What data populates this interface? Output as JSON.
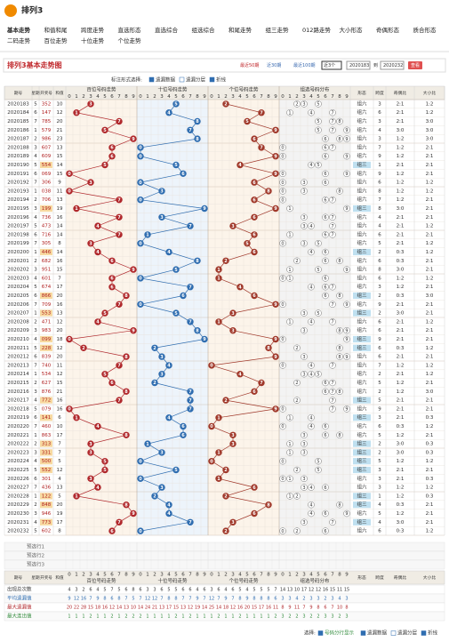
{
  "header": {
    "logo": "排列3",
    "nav": [
      "基本走势",
      "和值和尾",
      "跨度走势",
      "直选形态",
      "直选综合",
      "组选综合",
      "和尾走势",
      "组三走势",
      "012路走势",
      "大小形态",
      "奇偶形态",
      "质合形态",
      "二码走势",
      "百位走势",
      "十位走势",
      "个位走势"
    ]
  },
  "title": "排列3基本走势图",
  "range_controls": {
    "recent": [
      "最近50期",
      "近30期",
      "最近100期"
    ],
    "select": "近3个",
    "from": "2020183",
    "to_label": "到",
    "to": "2020232",
    "button": "查看"
  },
  "options": {
    "label": "标注形式选择:",
    "items": [
      "遗漏数据",
      "遗漏分层",
      "折线"
    ]
  },
  "table": {
    "headers": {
      "period": "期号",
      "weekday": "星期",
      "number": "开奖号",
      "sum": "和值",
      "groups": [
        "百位号码走势",
        "十位号码走势",
        "个位号码走势",
        "组选号码分布"
      ],
      "stats": [
        "形态",
        "跨度",
        "奇偶比",
        "大小比"
      ]
    },
    "digits": [
      0,
      1,
      2,
      3,
      4,
      5,
      6,
      7,
      8,
      9
    ],
    "rows": [
      [
        "2020183",
        5,
        "352",
        10,
        [
          3,
          5,
          2
        ],
        "组六",
        3,
        "2:1",
        "1:2"
      ],
      [
        "2020184",
        6,
        "147",
        12,
        [
          1,
          4,
          7
        ],
        "组六",
        6,
        "2:1",
        "1:2"
      ],
      [
        "2020185",
        7,
        "785",
        20,
        [
          7,
          8,
          5
        ],
        "组六",
        3,
        "2:1",
        "3:0"
      ],
      [
        "2020186",
        1,
        "579",
        21,
        [
          5,
          7,
          9
        ],
        "组六",
        4,
        "3:0",
        "3:0"
      ],
      [
        "2020187",
        2,
        "986",
        23,
        [
          9,
          8,
          6
        ],
        "组六",
        3,
        "1:2",
        "3:0"
      ],
      [
        "2020188",
        3,
        "607",
        13,
        [
          6,
          0,
          7
        ],
        "组六",
        7,
        "1:2",
        "2:1"
      ],
      [
        "2020189",
        4,
        "609",
        15,
        [
          6,
          0,
          9
        ],
        "组六",
        9,
        "1:2",
        "2:1"
      ],
      [
        "2020190",
        5,
        "554",
        14,
        [
          5,
          5,
          4
        ],
        "组三",
        1,
        "2:1",
        "2:1"
      ],
      [
        "2020191",
        6,
        "069",
        15,
        [
          0,
          6,
          9
        ],
        "组六",
        9,
        "1:2",
        "2:1"
      ],
      [
        "2020192",
        7,
        "306",
        9,
        [
          3,
          0,
          6
        ],
        "组六",
        6,
        "1:2",
        "1:2"
      ],
      [
        "2020193",
        1,
        "038",
        11,
        [
          0,
          3,
          8
        ],
        "组六",
        8,
        "1:2",
        "1:2"
      ],
      [
        "2020194",
        2,
        "706",
        13,
        [
          7,
          0,
          6
        ],
        "组六",
        7,
        "1:2",
        "2:1"
      ],
      [
        "2020195",
        3,
        "199",
        19,
        [
          1,
          9,
          9
        ],
        "组三",
        8,
        "3:0",
        "2:1"
      ],
      [
        "2020196",
        4,
        "736",
        16,
        [
          7,
          3,
          6
        ],
        "组六",
        4,
        "2:1",
        "2:1"
      ],
      [
        "2020197",
        5,
        "473",
        14,
        [
          4,
          7,
          3
        ],
        "组六",
        4,
        "2:1",
        "1:2"
      ],
      [
        "2020198",
        6,
        "716",
        14,
        [
          7,
          1,
          6
        ],
        "组六",
        6,
        "2:1",
        "2:1"
      ],
      [
        "2020199",
        7,
        "305",
        8,
        [
          3,
          0,
          5
        ],
        "组六",
        5,
        "2:1",
        "1:2"
      ],
      [
        "2020200",
        1,
        "446",
        14,
        [
          4,
          4,
          6
        ],
        "组三",
        2,
        "0:3",
        "1:2"
      ],
      [
        "2020201",
        2,
        "682",
        16,
        [
          6,
          8,
          2
        ],
        "组六",
        6,
        "0:3",
        "2:1"
      ],
      [
        "2020202",
        3,
        "951",
        15,
        [
          9,
          5,
          1
        ],
        "组六",
        8,
        "3:0",
        "2:1"
      ],
      [
        "2020203",
        4,
        "601",
        7,
        [
          6,
          0,
          1
        ],
        "组六",
        6,
        "1:2",
        "1:2"
      ],
      [
        "2020204",
        5,
        "674",
        17,
        [
          6,
          7,
          4
        ],
        "组六",
        3,
        "1:2",
        "2:1"
      ],
      [
        "2020205",
        6,
        "866",
        20,
        [
          8,
          6,
          6
        ],
        "组三",
        2,
        "0:3",
        "3:0"
      ],
      [
        "2020206",
        7,
        "709",
        16,
        [
          7,
          0,
          9
        ],
        "组六",
        9,
        "2:1",
        "2:1"
      ],
      [
        "2020207",
        1,
        "553",
        13,
        [
          5,
          5,
          3
        ],
        "组三",
        2,
        "3:0",
        "2:1"
      ],
      [
        "2020208",
        2,
        "471",
        12,
        [
          4,
          7,
          1
        ],
        "组六",
        6,
        "2:1",
        "1:2"
      ],
      [
        "2020209",
        3,
        "983",
        20,
        [
          9,
          8,
          3
        ],
        "组六",
        6,
        "2:1",
        "2:1"
      ],
      [
        "2020210",
        4,
        "099",
        18,
        [
          0,
          9,
          9
        ],
        "组三",
        9,
        "2:1",
        "2:1"
      ],
      [
        "2020211",
        5,
        "228",
        12,
        [
          2,
          2,
          8
        ],
        "组三",
        6,
        "0:3",
        "1:2"
      ],
      [
        "2020212",
        6,
        "839",
        20,
        [
          8,
          3,
          9
        ],
        "组六",
        6,
        "2:1",
        "2:1"
      ],
      [
        "2020213",
        7,
        "740",
        11,
        [
          7,
          4,
          0
        ],
        "组六",
        7,
        "1:2",
        "1:2"
      ],
      [
        "2020214",
        1,
        "534",
        12,
        [
          5,
          3,
          4
        ],
        "组六",
        2,
        "2:1",
        "1:2"
      ],
      [
        "2020215",
        2,
        "627",
        15,
        [
          6,
          2,
          7
        ],
        "组六",
        5,
        "1:2",
        "2:1"
      ],
      [
        "2020216",
        3,
        "876",
        21,
        [
          8,
          7,
          6
        ],
        "组六",
        2,
        "1:2",
        "3:0"
      ],
      [
        "2020217",
        4,
        "772",
        16,
        [
          7,
          7,
          2
        ],
        "组三",
        5,
        "2:1",
        "2:1"
      ],
      [
        "2020218",
        5,
        "079",
        16,
        [
          0,
          7,
          9
        ],
        "组六",
        9,
        "2:1",
        "2:1"
      ],
      [
        "2020219",
        6,
        "141",
        6,
        [
          1,
          4,
          1
        ],
        "组三",
        3,
        "2:1",
        "0:3"
      ],
      [
        "2020220",
        7,
        "460",
        10,
        [
          4,
          6,
          0
        ],
        "组六",
        6,
        "0:3",
        "1:2"
      ],
      [
        "2020221",
        1,
        "863",
        17,
        [
          8,
          6,
          3
        ],
        "组六",
        5,
        "1:2",
        "2:1"
      ],
      [
        "2020222",
        2,
        "313",
        7,
        [
          3,
          1,
          3
        ],
        "组三",
        2,
        "3:0",
        "0:3"
      ],
      [
        "2020223",
        3,
        "331",
        7,
        [
          3,
          3,
          1
        ],
        "组三",
        2,
        "3:0",
        "0:3"
      ],
      [
        "2020224",
        4,
        "500",
        5,
        [
          5,
          0,
          0
        ],
        "组三",
        5,
        "1:2",
        "1:2"
      ],
      [
        "2020225",
        5,
        "552",
        12,
        [
          5,
          5,
          2
        ],
        "组三",
        3,
        "2:1",
        "2:1"
      ],
      [
        "2020226",
        6,
        "301",
        4,
        [
          3,
          0,
          1
        ],
        "组六",
        3,
        "2:1",
        "0:3"
      ],
      [
        "2020227",
        7,
        "436",
        13,
        [
          4,
          3,
          6
        ],
        "组六",
        3,
        "1:2",
        "1:2"
      ],
      [
        "2020228",
        1,
        "122",
        5,
        [
          1,
          2,
          2
        ],
        "组三",
        1,
        "1:2",
        "0:3"
      ],
      [
        "2020229",
        2,
        "848",
        20,
        [
          8,
          4,
          8
        ],
        "组三",
        4,
        "0:3",
        "2:1"
      ],
      [
        "2020230",
        3,
        "946",
        19,
        [
          9,
          4,
          6
        ],
        "组六",
        5,
        "1:2",
        "2:1"
      ],
      [
        "2020231",
        4,
        "773",
        17,
        [
          7,
          7,
          3
        ],
        "组三",
        4,
        "3:0",
        "2:1"
      ],
      [
        "2020232",
        5,
        "602",
        8,
        [
          6,
          0,
          2
        ],
        "组六",
        6,
        "0:3",
        "1:2"
      ]
    ]
  },
  "preselect": [
    "预选行1",
    "预选行2",
    "预选行3"
  ],
  "summary": {
    "labels": [
      "出现总次数",
      "平均遗漏值",
      "最大遗漏值",
      "最大连出值"
    ],
    "values": [
      [
        4,
        3,
        2,
        6,
        4,
        5,
        7,
        5,
        6,
        8,
        6,
        3,
        3,
        6,
        5,
        5,
        6,
        6,
        4,
        6,
        3,
        6,
        4,
        6,
        5,
        4,
        5,
        5,
        5,
        7,
        14,
        13,
        10,
        17,
        12,
        12,
        16,
        15,
        11,
        15
      ],
      [
        9,
        12,
        16,
        7,
        9,
        8,
        6,
        8,
        7,
        5,
        7,
        12,
        12,
        7,
        8,
        8,
        7,
        7,
        9,
        7,
        12,
        7,
        9,
        7,
        8,
        9,
        8,
        8,
        8,
        6,
        3,
        3,
        4,
        2,
        3,
        3,
        2,
        3,
        4,
        3
      ],
      [
        20,
        22,
        28,
        15,
        18,
        16,
        12,
        14,
        13,
        10,
        14,
        24,
        21,
        13,
        17,
        15,
        13,
        12,
        19,
        14,
        25,
        14,
        18,
        12,
        16,
        20,
        15,
        17,
        16,
        11,
        8,
        9,
        11,
        7,
        9,
        8,
        6,
        7,
        10,
        8
      ],
      [
        1,
        1,
        1,
        2,
        1,
        1,
        2,
        1,
        2,
        2,
        2,
        1,
        1,
        1,
        1,
        2,
        1,
        2,
        1,
        1,
        1,
        2,
        1,
        1,
        2,
        1,
        1,
        1,
        1,
        2,
        3,
        2,
        2,
        3,
        2,
        2,
        3,
        3,
        2,
        3
      ]
    ]
  },
  "bottom": {
    "label": "选择:",
    "items": [
      "号码分行显示",
      "遗漏数据",
      "遗漏分层",
      "折线"
    ]
  }
}
